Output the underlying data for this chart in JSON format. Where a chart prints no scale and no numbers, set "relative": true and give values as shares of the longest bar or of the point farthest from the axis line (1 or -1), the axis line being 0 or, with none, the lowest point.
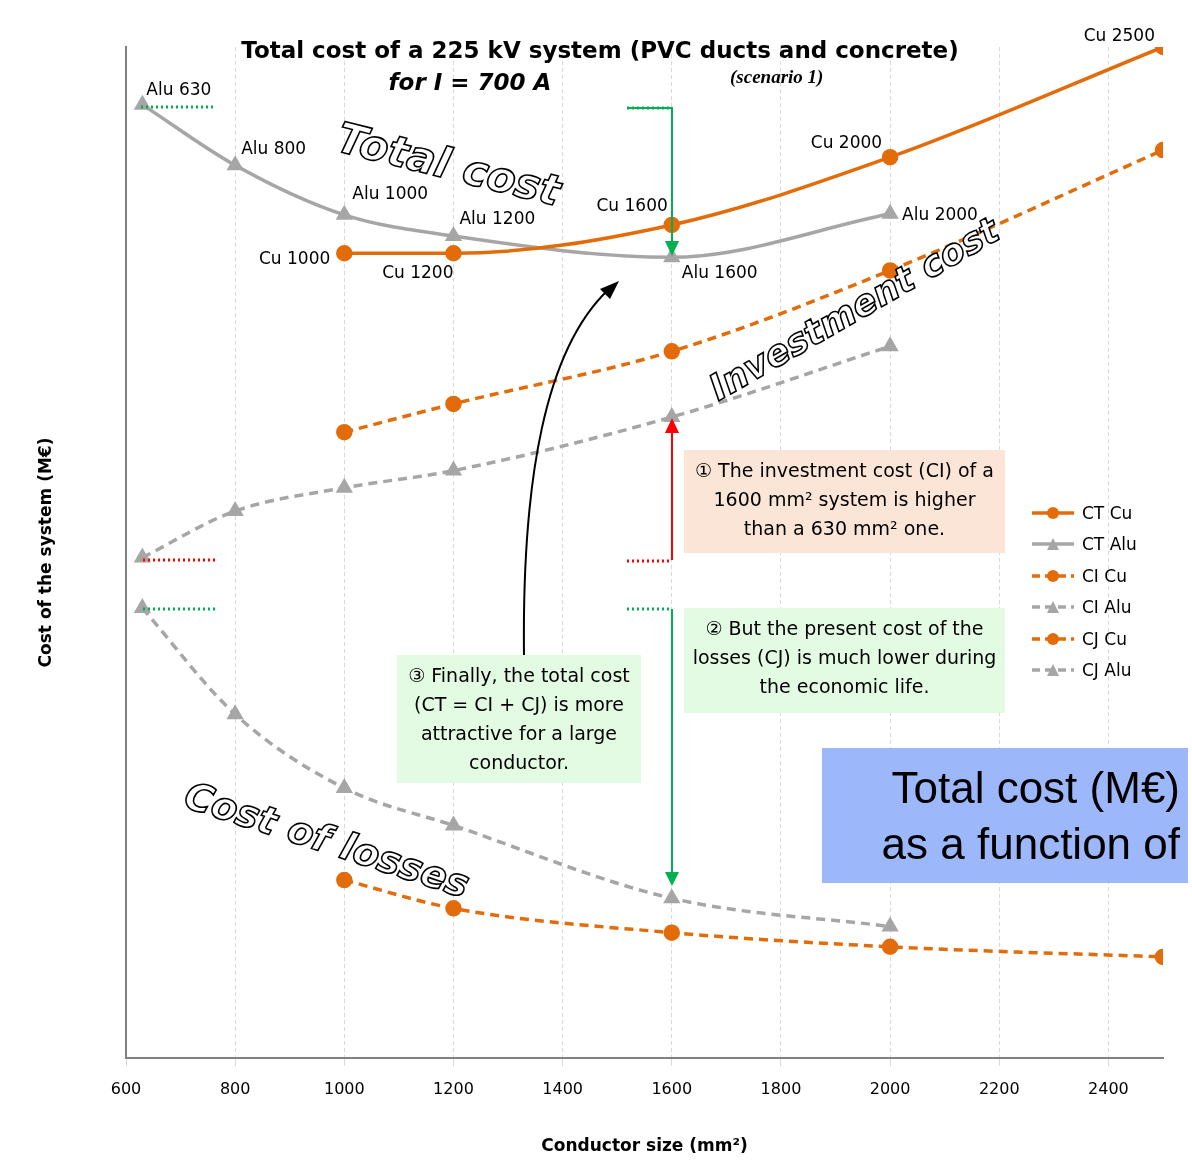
{
  "chart_data": {
    "type": "line",
    "title": "Total cost of a 225 kV system (PVC ducts and concrete)",
    "subtitle": "for I = 700 A",
    "xlabel": "Conductor size (mm²)",
    "ylabel": "Cost of the system (M€)",
    "xlim": [
      600,
      2500
    ],
    "xticks": [
      600,
      800,
      1000,
      1200,
      1400,
      1600,
      1800,
      2000,
      2200,
      2400
    ],
    "relative": true,
    "grid": "x",
    "legend": "right",
    "series": [
      {
        "name": "CT Cu",
        "color": "#e36c0a",
        "marker": "circle",
        "line_style": "solid",
        "x": [
          1000,
          1200,
          1600,
          2000,
          2500
        ],
        "values": [
          0.796,
          0.796,
          0.824,
          0.891,
          1
        ]
      },
      {
        "name": "CT Alu",
        "color": "#a6a6a6",
        "marker": "triangle",
        "line_style": "solid",
        "x": [
          630,
          800,
          1000,
          1200,
          1600,
          2000
        ],
        "values": [
          0.943,
          0.883,
          0.834,
          0.813,
          0.792,
          0.835
        ]
      },
      {
        "name": "CI Cu",
        "color": "#e36c0a",
        "marker": "circle",
        "line_style": "dashed",
        "x": [
          1000,
          1200,
          1600,
          2000,
          2500
        ],
        "values": [
          0.619,
          0.647,
          0.699,
          0.779,
          0.898
        ]
      },
      {
        "name": "CI Alu",
        "color": "#a6a6a6",
        "marker": "triangle",
        "line_style": "dashed",
        "x": [
          630,
          800,
          1000,
          1200,
          1600,
          2000
        ],
        "values": [
          0.495,
          0.541,
          0.564,
          0.581,
          0.634,
          0.704
        ]
      },
      {
        "name": "CJ Cu",
        "color": "#e36c0a",
        "marker": "circle",
        "line_style": "dashed",
        "x": [
          1000,
          1200,
          1600,
          2000,
          2500
        ],
        "values": [
          0.176,
          0.148,
          0.124,
          0.11,
          0.1
        ]
      },
      {
        "name": "CJ Alu",
        "color": "#a6a6a6",
        "marker": "triangle",
        "line_style": "dashed",
        "x": [
          630,
          800,
          1000,
          1200,
          1600,
          2000
        ],
        "values": [
          0.445,
          0.34,
          0.267,
          0.23,
          0.158,
          0.13
        ]
      }
    ],
    "annotations": [
      {
        "text": "Alu 630",
        "x": 630,
        "y": 0.943
      },
      {
        "text": "Alu 800",
        "x": 800,
        "y": 0.883
      },
      {
        "text": "Alu 1000",
        "x": 1000,
        "y": 0.834
      },
      {
        "text": "Alu 1200",
        "x": 1200,
        "y": 0.813
      },
      {
        "text": "Alu 1600",
        "x": 1600,
        "y": 0.792
      },
      {
        "text": "Alu 2000",
        "x": 2000,
        "y": 0.835
      },
      {
        "text": "Cu 1000",
        "x": 1000,
        "y": 0.796
      },
      {
        "text": "Cu 1200",
        "x": 1200,
        "y": 0.796
      },
      {
        "text": "Cu 1600",
        "x": 1600,
        "y": 0.824
      },
      {
        "text": "Cu 2000",
        "x": 2000,
        "y": 0.891
      },
      {
        "text": "Cu 2500",
        "x": 2500,
        "y": 1
      },
      "(scenario 1)",
      "Total cost",
      "Investment cost",
      "Cost of losses",
      "① The investment cost (CI) of a 1600 mm² system is higher than a 630 mm² one.",
      "② But the present cost of the losses (CJ) is much lower during the economic life.",
      "③ Finally, the total cost (CT = CI + CJ) is more attractive for a large conductor.",
      "Total cost (M€) as a function of"
    ]
  }
}
